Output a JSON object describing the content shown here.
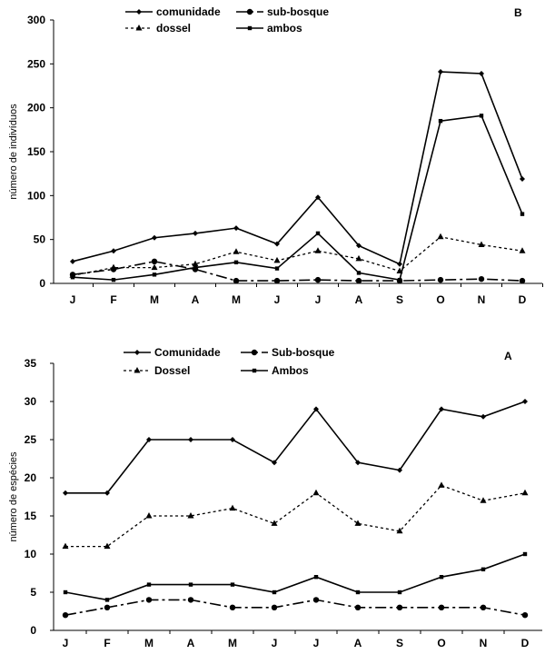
{
  "chart_data": [
    {
      "type": "line",
      "panel_label": "B",
      "categories": [
        "J",
        "F",
        "M",
        "A",
        "M",
        "J",
        "J",
        "A",
        "S",
        "O",
        "N",
        "D"
      ],
      "ylabel": "número de indivíduos",
      "ylim": [
        0,
        300
      ],
      "yticks": [
        "0",
        "50",
        "100",
        "150",
        "200",
        "250",
        "300"
      ],
      "grid": false,
      "legend_position": "top",
      "series": [
        {
          "name": "comunidade",
          "values": [
            25,
            37,
            52,
            57,
            63,
            45,
            98,
            43,
            22,
            241,
            239,
            119
          ]
        },
        {
          "name": "sub-bosque",
          "values": [
            10,
            16,
            25,
            16,
            3,
            3,
            4,
            3,
            3,
            4,
            5,
            3
          ]
        },
        {
          "name": "dossel",
          "values": [
            9,
            18,
            18,
            22,
            36,
            26,
            37,
            28,
            14,
            53,
            44,
            37
          ]
        },
        {
          "name": "ambos",
          "values": [
            7,
            4,
            10,
            18,
            24,
            17,
            57,
            12,
            4,
            185,
            191,
            79
          ]
        }
      ]
    },
    {
      "type": "line",
      "panel_label": "A",
      "categories": [
        "J",
        "F",
        "M",
        "A",
        "M",
        "J",
        "J",
        "A",
        "S",
        "O",
        "N",
        "D"
      ],
      "ylabel": "número de espécies",
      "ylim": [
        0,
        35
      ],
      "yticks": [
        "0",
        "5",
        "10",
        "15",
        "20",
        "25",
        "30",
        "35"
      ],
      "grid": false,
      "legend_position": "top",
      "series": [
        {
          "name": "Comunidade",
          "values": [
            18,
            18,
            25,
            25,
            25,
            22,
            29,
            22,
            21,
            29,
            28,
            30
          ]
        },
        {
          "name": "Sub-bosque",
          "values": [
            2,
            3,
            4,
            4,
            3,
            3,
            4,
            3,
            3,
            3,
            3,
            2
          ]
        },
        {
          "name": "Dossel",
          "values": [
            11,
            11,
            15,
            15,
            16,
            14,
            18,
            14,
            13,
            19,
            17,
            18
          ]
        },
        {
          "name": "Ambos",
          "values": [
            5,
            4,
            6,
            6,
            6,
            5,
            7,
            5,
            5,
            7,
            8,
            10
          ]
        }
      ]
    }
  ]
}
